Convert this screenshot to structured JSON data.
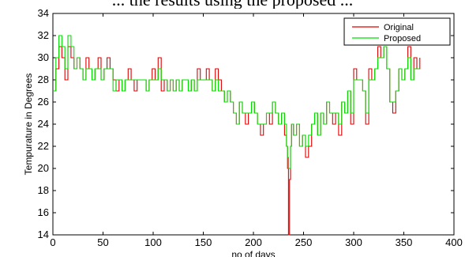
{
  "header_text": "... the results using the proposed ...",
  "chart_data": {
    "type": "line",
    "title": "",
    "xlabel": "no of days",
    "ylabel": "Tempurature in Degrees",
    "xlim": [
      0,
      400
    ],
    "ylim": [
      14,
      34
    ],
    "xticks": [
      "0",
      "50",
      "100",
      "150",
      "200",
      "250",
      "300",
      "350",
      "400"
    ],
    "yticks": [
      "14",
      "16",
      "18",
      "20",
      "22",
      "24",
      "26",
      "28",
      "30",
      "32",
      "34"
    ],
    "grid": false,
    "legend_position": "top-right",
    "series": [
      {
        "name": "Original",
        "color": "#e00000",
        "x": [
          0,
          3,
          6,
          9,
          12,
          15,
          18,
          21,
          24,
          27,
          30,
          33,
          36,
          39,
          42,
          45,
          48,
          51,
          54,
          57,
          60,
          63,
          66,
          69,
          72,
          75,
          78,
          81,
          84,
          87,
          90,
          93,
          96,
          99,
          102,
          105,
          108,
          111,
          114,
          117,
          120,
          123,
          126,
          129,
          132,
          135,
          138,
          141,
          144,
          147,
          150,
          153,
          156,
          159,
          162,
          165,
          168,
          171,
          174,
          177,
          180,
          183,
          186,
          189,
          192,
          195,
          198,
          201,
          204,
          207,
          210,
          213,
          216,
          219,
          222,
          225,
          228,
          231,
          233,
          234,
          235,
          236,
          237,
          238,
          240,
          243,
          246,
          249,
          252,
          255,
          258,
          261,
          264,
          267,
          270,
          273,
          276,
          279,
          282,
          285,
          288,
          291,
          294,
          297,
          300,
          303,
          306,
          309,
          312,
          315,
          318,
          321,
          324,
          327,
          330,
          333,
          336,
          339,
          342,
          345,
          348,
          351,
          354,
          357,
          360,
          363,
          366
        ],
        "values": [
          27,
          29,
          31,
          30,
          28,
          31,
          30,
          29,
          30,
          29,
          28,
          30,
          29,
          28,
          29,
          30,
          28,
          29,
          30,
          29,
          28,
          27,
          28,
          27,
          28,
          29,
          28,
          27,
          28,
          28,
          28,
          27,
          28,
          29,
          28,
          30,
          27,
          28,
          27,
          28,
          27,
          28,
          27,
          28,
          28,
          27,
          28,
          27,
          29,
          28,
          28,
          29,
          28,
          27,
          29,
          28,
          27,
          26,
          27,
          26,
          25,
          24,
          26,
          25,
          24,
          25,
          26,
          25,
          24,
          23,
          24,
          25,
          24,
          26,
          25,
          24,
          25,
          23,
          22,
          20,
          14,
          19,
          22,
          24,
          23,
          24,
          22,
          23,
          21,
          22,
          24,
          25,
          23,
          25,
          24,
          26,
          25,
          24,
          25,
          23,
          26,
          25,
          27,
          24,
          29,
          28,
          28,
          27,
          24,
          29,
          28,
          29,
          31,
          30,
          31,
          29,
          26,
          25,
          27,
          29,
          28,
          29,
          31,
          28,
          30,
          29,
          30
        ]
      },
      {
        "name": "Proposed",
        "color": "#00e000",
        "x": [
          0,
          3,
          6,
          9,
          12,
          15,
          18,
          21,
          24,
          27,
          30,
          33,
          36,
          39,
          42,
          45,
          48,
          51,
          54,
          57,
          60,
          63,
          66,
          69,
          72,
          75,
          78,
          81,
          84,
          87,
          90,
          93,
          96,
          99,
          102,
          105,
          108,
          111,
          114,
          117,
          120,
          123,
          126,
          129,
          132,
          135,
          138,
          141,
          144,
          147,
          150,
          153,
          156,
          159,
          162,
          165,
          168,
          171,
          174,
          177,
          180,
          183,
          186,
          189,
          192,
          195,
          198,
          201,
          204,
          207,
          210,
          213,
          216,
          219,
          222,
          225,
          228,
          231,
          233,
          234,
          235,
          236,
          237,
          238,
          240,
          243,
          246,
          249,
          252,
          255,
          258,
          261,
          264,
          267,
          270,
          273,
          276,
          279,
          282,
          285,
          288,
          291,
          294,
          297,
          300,
          303,
          306,
          309,
          312,
          315,
          318,
          321,
          324,
          327,
          330,
          333,
          336,
          339,
          342,
          345,
          348,
          351,
          354,
          357,
          360,
          363,
          366
        ],
        "values": [
          27,
          30,
          32,
          31,
          29,
          32,
          31,
          29,
          30,
          29,
          28,
          29,
          29,
          28,
          29,
          29,
          28,
          29,
          29,
          29,
          27,
          28,
          28,
          27,
          28,
          28,
          28,
          28,
          28,
          28,
          28,
          27,
          28,
          28,
          28,
          29,
          28,
          28,
          27,
          28,
          27,
          28,
          27,
          28,
          28,
          27,
          28,
          27,
          28,
          28,
          28,
          28,
          28,
          27,
          28,
          27,
          27,
          26,
          27,
          26,
          25,
          24,
          26,
          25,
          25,
          25,
          26,
          25,
          24,
          24,
          24,
          25,
          25,
          26,
          25,
          24,
          25,
          24,
          22,
          21,
          20,
          20,
          22,
          24,
          23,
          24,
          22,
          23,
          22,
          23,
          24,
          25,
          23,
          25,
          24,
          26,
          25,
          25,
          25,
          24,
          26,
          25,
          27,
          25,
          28,
          28,
          28,
          27,
          25,
          28,
          28,
          29,
          30,
          30,
          31,
          29,
          26,
          26,
          27,
          29,
          28,
          29,
          30,
          28,
          29,
          29,
          29
        ]
      }
    ]
  }
}
